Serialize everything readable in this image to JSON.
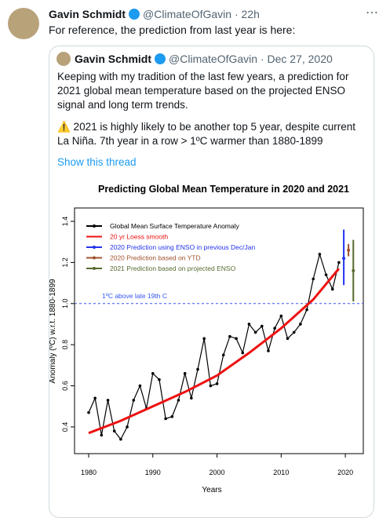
{
  "tweet": {
    "name": "Gavin Schmidt",
    "handle_time": "@ClimateOfGavin · 22h",
    "text": "For reference, the prediction from last year is here:",
    "quote": {
      "name": "Gavin Schmidt",
      "handle_time": "@ClimateOfGavin · Dec 27, 2020",
      "paragraphs": [
        "Keeping with my tradition of the last few years, a prediction for 2021 global mean temperature based on the projected ENSO signal and long term trends.",
        "⚠️ 2021 is highly likely to be another top 5 year, despite current La Niña. 7th year in a row > 1ºC warmer than 1880-1899"
      ],
      "link": "Show this thread"
    }
  },
  "chart_data": {
    "type": "line",
    "title": "Predicting Global Mean Temperature in 2020 and 2021",
    "x_label": "Years",
    "y_label": "Anomaly (ºC) w.r.t. 1880-1899",
    "xlim": [
      1977.8,
      2022.8
    ],
    "xticks": [
      1980,
      1990,
      2000,
      2010,
      2020
    ],
    "ylim": [
      0.27,
      1.465
    ],
    "yticks": [
      0.4,
      0.6,
      0.8,
      {
        "value": 1,
        "label": "1.0"
      },
      1.2,
      1.4
    ],
    "reference_line": {
      "value": 1,
      "label": "1ºC above late 19th C",
      "color": "#3355ee"
    },
    "series": [
      {
        "name": "Global Mean Surface Temperature Anomaly",
        "color": "#000000",
        "style": "line-points",
        "x": [
          1980,
          1981,
          1982,
          1983,
          1984,
          1985,
          1986,
          1987,
          1988,
          1989,
          1990,
          1991,
          1992,
          1993,
          1994,
          1995,
          1996,
          1997,
          1998,
          1999,
          2000,
          2001,
          2002,
          2003,
          2004,
          2005,
          2006,
          2007,
          2008,
          2009,
          2010,
          2011,
          2012,
          2013,
          2014,
          2015,
          2016,
          2017,
          2018,
          2019
        ],
        "values": [
          0.47,
          0.54,
          0.36,
          0.53,
          0.38,
          0.34,
          0.4,
          0.53,
          0.6,
          0.49,
          0.66,
          0.63,
          0.44,
          0.45,
          0.53,
          0.66,
          0.54,
          0.68,
          0.83,
          0.6,
          0.61,
          0.75,
          0.84,
          0.83,
          0.76,
          0.9,
          0.86,
          0.89,
          0.77,
          0.88,
          0.94,
          0.83,
          0.86,
          0.9,
          0.97,
          1.12,
          1.24,
          1.14,
          1.07,
          1.2
        ]
      },
      {
        "name": "20 yr Loess smooth",
        "color": "#ee1111",
        "style": "line",
        "x": [
          1980,
          1985,
          1990,
          1995,
          2000,
          2005,
          2010,
          2015,
          2019
        ],
        "values": [
          0.37,
          0.43,
          0.5,
          0.57,
          0.65,
          0.76,
          0.88,
          1.02,
          1.17
        ]
      }
    ],
    "predictions": [
      {
        "name": "2020 Prediction using ENSO in previous Dec/Jan",
        "color": "#2233ee",
        "x": 2020,
        "value": 1.22,
        "low": 1.09,
        "high": 1.36
      },
      {
        "name": "2020 Prediction based on YTD",
        "color": "#a0522d",
        "x": 2020,
        "value": 1.26,
        "low": 1.23,
        "high": 1.29
      },
      {
        "name": "2021 Prediction based on projected ENSO",
        "color": "#556b2f",
        "x": 2021,
        "value": 1.16,
        "low": 1.01,
        "high": 1.31
      }
    ]
  }
}
